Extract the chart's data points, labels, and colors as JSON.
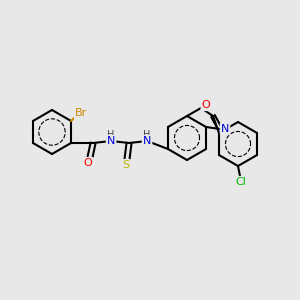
{
  "bg_color": "#e8e8e8",
  "bond_color": "#000000",
  "atom_colors": {
    "Br": "#cc8800",
    "N": "#0000dd",
    "O": "#ff0000",
    "S": "#bbbb00",
    "Cl": "#00bb00",
    "C": "#000000",
    "H": "#444444"
  },
  "figsize": [
    3.0,
    3.0
  ],
  "dpi": 100
}
